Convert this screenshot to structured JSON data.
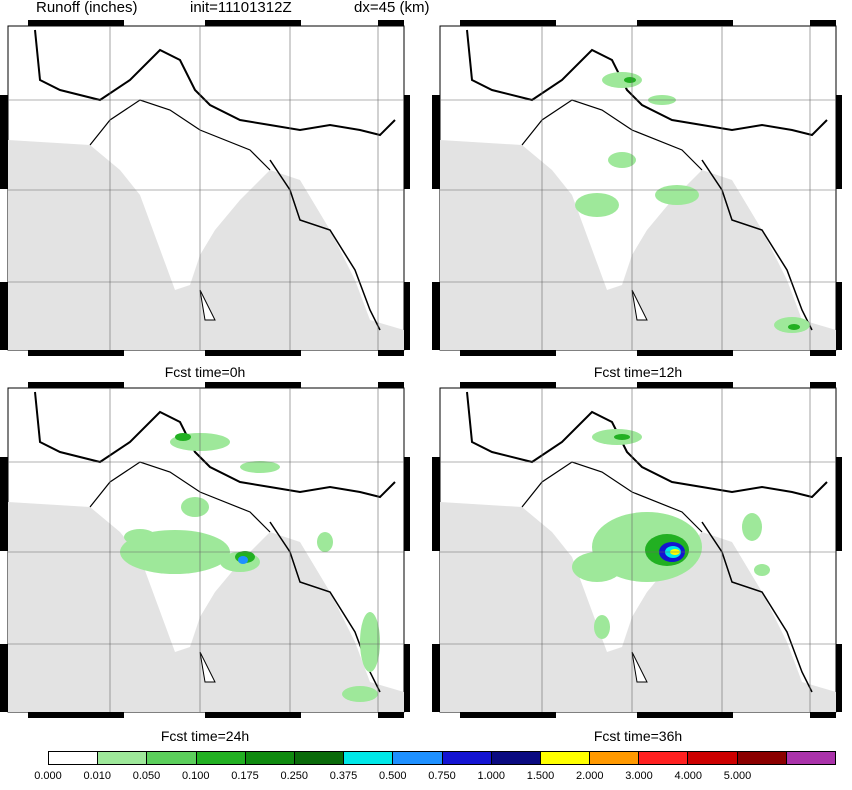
{
  "header": {
    "field": "Runoff (inches)",
    "init": "init=11101312Z",
    "dx": "dx=45 (km)"
  },
  "panels": [
    {
      "title": "Fcst time=0h"
    },
    {
      "title": "Fcst time=12h"
    },
    {
      "title": "Fcst time=24h"
    },
    {
      "title": "Fcst time=36h"
    }
  ],
  "colorbar": {
    "colors": [
      "#ffffff",
      "#9ee89a",
      "#5ccf5c",
      "#22b022",
      "#0f8a0f",
      "#0a6a0a",
      "#00e8e8",
      "#1e90ff",
      "#1414d2",
      "#0a0a80",
      "#ffff00",
      "#ff9900",
      "#ff2020",
      "#cc0000",
      "#8b0000",
      "#aa33aa"
    ],
    "labels": [
      "0.000",
      "0.010",
      "0.050",
      "0.100",
      "0.175",
      "0.250",
      "0.375",
      "0.500",
      "0.750",
      "1.000",
      "1.500",
      "2.000",
      "3.000",
      "4.000",
      "5.000"
    ]
  }
}
